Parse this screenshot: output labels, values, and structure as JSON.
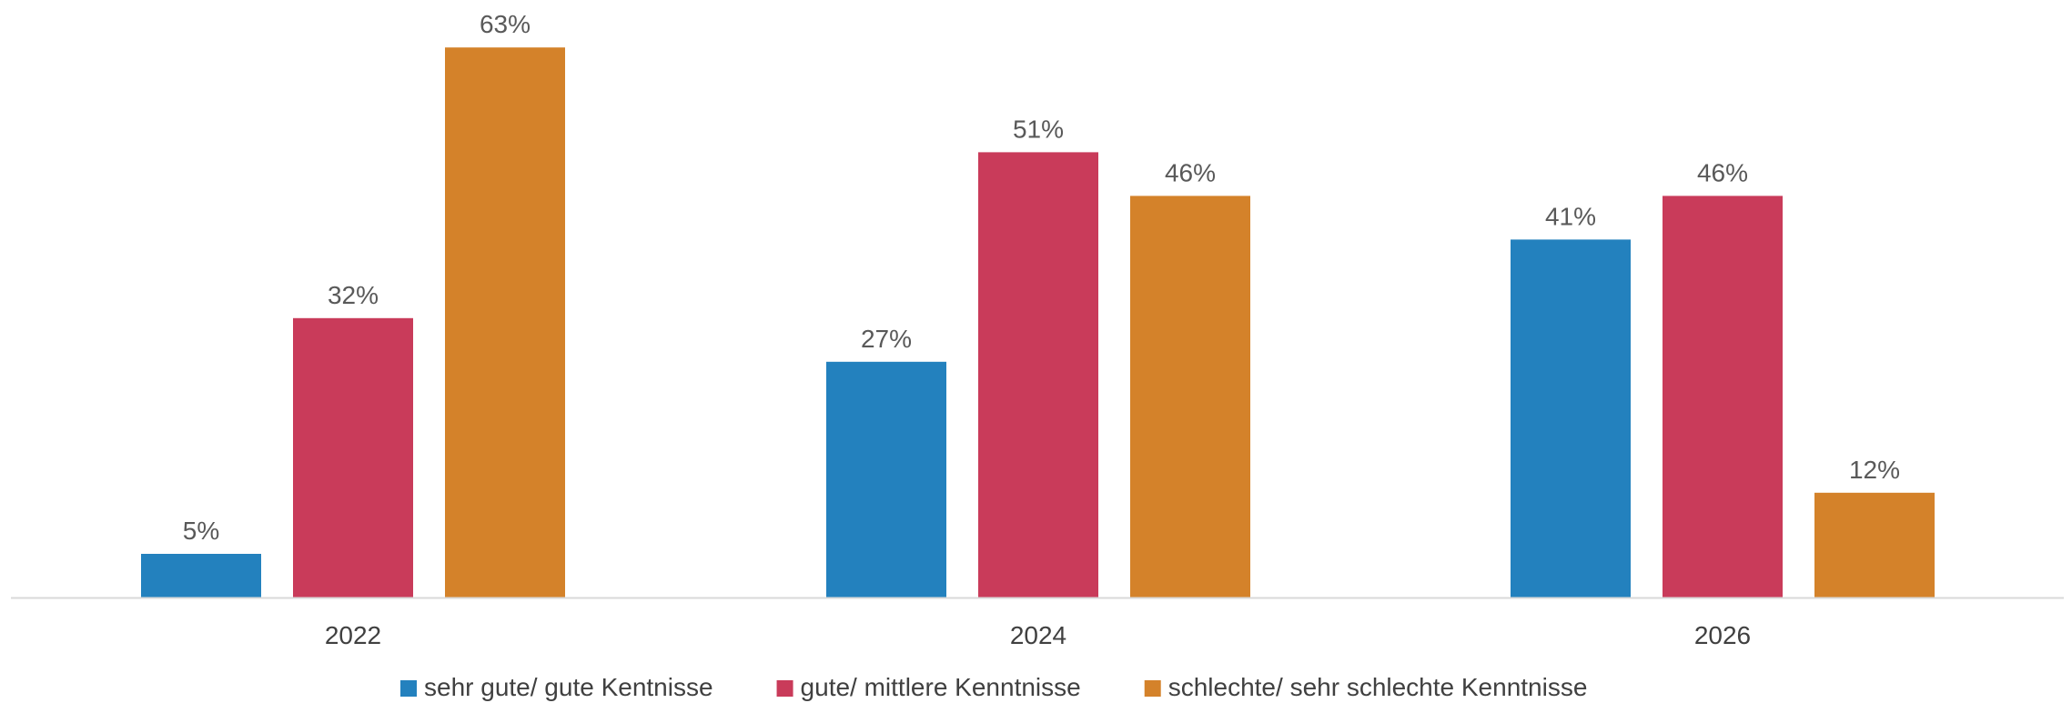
{
  "chart_data": {
    "type": "bar",
    "categories": [
      "2022",
      "2024",
      "2026"
    ],
    "series": [
      {
        "name": "sehr gute/ gute Kentnisse",
        "values": [
          5,
          27,
          41
        ],
        "color": "#2381BE"
      },
      {
        "name": "gute/ mittlere Kenntnisse",
        "values": [
          32,
          51,
          46
        ],
        "color": "#C93B5A"
      },
      {
        "name": "schlechte/ sehr schlechte Kenntnisse",
        "values": [
          63,
          46,
          12
        ],
        "color": "#D4822A"
      }
    ],
    "value_suffix": "%",
    "ylim": [
      0,
      66
    ],
    "grid": false,
    "legend_position": "bottom",
    "axis_color": "#D9D9D9"
  }
}
